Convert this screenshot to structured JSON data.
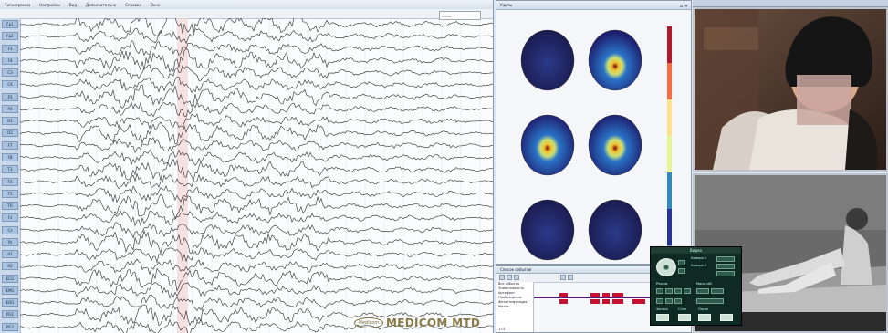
{
  "eeg": {
    "menu": [
      "Гипнограмма",
      "Настройки",
      "Вид",
      "Дополнительно",
      "Справка",
      "Окно"
    ],
    "toolbar_search_placeholder": "поиск",
    "channels": [
      "Fp1",
      "Fp2",
      "F3",
      "F4",
      "C3",
      "C4",
      "P3",
      "P4",
      "O1",
      "O2",
      "F7",
      "F8",
      "T3",
      "T4",
      "T5",
      "T6",
      "Fz",
      "Cz",
      "Pz",
      "A1",
      "A2",
      "ECG",
      "EMG",
      "EOG",
      "PG1",
      "PG2"
    ],
    "watermark_brand": "MEDICOM MTD",
    "watermark_logo": "Medicom"
  },
  "maps": {
    "title": "Карты",
    "colorbar_label": "",
    "heads": [
      {
        "id": "head-1",
        "level": 0.08
      },
      {
        "id": "head-2",
        "level": 0.95
      },
      {
        "id": "head-3",
        "level": 0.9
      },
      {
        "id": "head-4",
        "level": 0.85
      },
      {
        "id": "head-5",
        "level": 0.12
      },
      {
        "id": "head-6",
        "level": 0.02
      }
    ],
    "colorbar_colors": [
      "#b2182b",
      "#f46d43",
      "#fee08b",
      "#e6f598",
      "#3288bd",
      "#253494"
    ]
  },
  "events": {
    "title": "Список событий",
    "list": [
      "Все события",
      "Эпиактивность",
      "Артефакт",
      "Пробуждение",
      "Фотостимуляция",
      "Метка"
    ],
    "footer": "1:01"
  },
  "control": {
    "header": "Видео",
    "labels": [
      "Запись",
      "Стоп",
      "Пауза",
      "Камера 1",
      "Камера 2",
      "Режим",
      "Масштаб"
    ]
  }
}
